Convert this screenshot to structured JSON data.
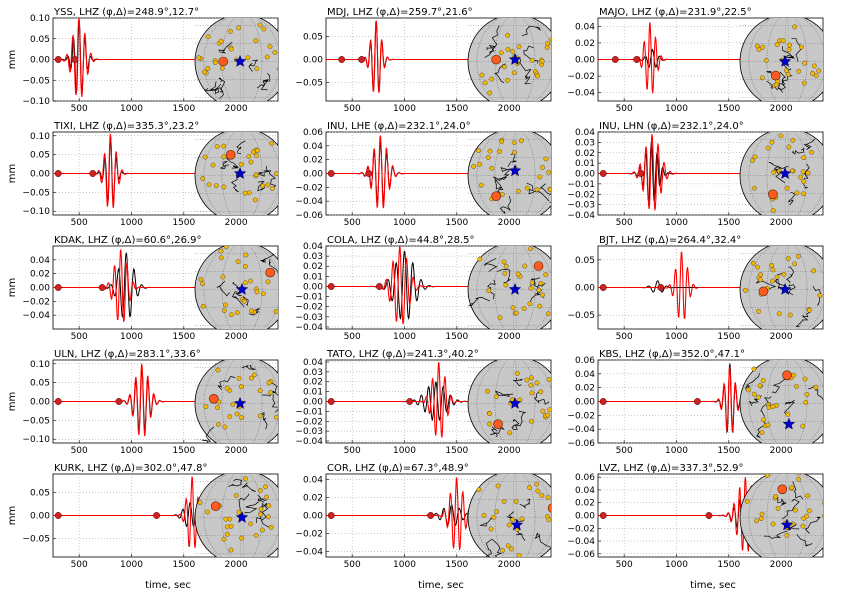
{
  "figure": {
    "ylabel": "mm",
    "xlabel": "time, sec",
    "colors": {
      "observed": "#000000",
      "synthetic": "#ff0000",
      "marker": "#cc2222",
      "station": "#ff5a1f",
      "event": "#0000cc",
      "globe": "#c8c8c8",
      "stations_dots": "#f5b800"
    }
  },
  "chart_data": [
    {
      "type": "line",
      "title": "YSS, LHZ (φ,Δ)=248.9°,12.7°",
      "xlim": [
        250,
        2400
      ],
      "ylim": [
        -0.1,
        0.1
      ],
      "yticks": [
        "0.10",
        "0.05",
        "0.00",
        "−0.05",
        "−0.10"
      ],
      "xticks": [
        "500",
        "1000",
        "1500",
        "2000"
      ],
      "picks": [
        300,
        460
      ],
      "series": [
        {
          "name": "observed",
          "t0": 500,
          "amp": 0.095,
          "period": 55,
          "nc": 1.6,
          "phase": 0
        },
        {
          "name": "synthetic",
          "t0": 500,
          "amp": 0.1,
          "period": 58,
          "nc": 1.8,
          "phase": 0.3
        }
      ],
      "map": {
        "sta": [
          0.3,
          0.5
        ],
        "evt": [
          0.48,
          0.5
        ]
      }
    },
    {
      "type": "line",
      "title": "MDJ, LHZ (φ,Δ)=259.7°,21.6°",
      "xlim": [
        250,
        2400
      ],
      "ylim": [
        -0.09,
        0.09
      ],
      "yticks": [
        "0.05",
        "0.00",
        "−0.05"
      ],
      "xticks": [
        "500",
        "1000",
        "1500",
        "2000"
      ],
      "picks": [
        400,
        590
      ],
      "series": [
        {
          "name": "observed",
          "t0": 730,
          "amp": 0.083,
          "period": 55,
          "nc": 1.5,
          "phase": 0
        },
        {
          "name": "synthetic",
          "t0": 730,
          "amp": 0.085,
          "period": 55,
          "nc": 1.5,
          "phase": 0.15
        }
      ],
      "map": {
        "sta": [
          0.3,
          0.48
        ],
        "evt": [
          0.5,
          0.48
        ]
      }
    },
    {
      "type": "line",
      "title": "MAJO, LHZ (φ,Δ)=231.9°,22.5°",
      "xlim": [
        250,
        2400
      ],
      "ylim": [
        -0.05,
        0.05
      ],
      "yticks": [
        "0.04",
        "0.02",
        "0.00",
        "−0.02",
        "−0.04"
      ],
      "xticks": [
        "500",
        "1000",
        "1500",
        "2000"
      ],
      "picks": [
        415,
        620
      ],
      "series": [
        {
          "name": "observed",
          "t0": 770,
          "amp": 0.012,
          "period": 70,
          "nc": 1.2,
          "phase": 0
        },
        {
          "name": "synthetic",
          "t0": 750,
          "amp": 0.045,
          "period": 55,
          "nc": 1.6,
          "phase": 0.5
        }
      ],
      "map": {
        "sta": [
          0.38,
          0.65
        ],
        "evt": [
          0.48,
          0.5
        ]
      }
    },
    {
      "type": "line",
      "title": "TIXI, LHZ (φ,Δ)=335.3°,23.2°",
      "xlim": [
        250,
        2400
      ],
      "ylim": [
        -0.11,
        0.11
      ],
      "yticks": [
        "0.10",
        "0.05",
        "0.00",
        "−0.05",
        "−0.10"
      ],
      "xticks": [
        "500",
        "1000",
        "1500",
        "2000"
      ],
      "picks": [
        300,
        630
      ],
      "series": [
        {
          "name": "observed",
          "t0": 800,
          "amp": 0.095,
          "period": 55,
          "nc": 1.4,
          "phase": 0
        },
        {
          "name": "synthetic",
          "t0": 800,
          "amp": 0.105,
          "period": 57,
          "nc": 1.6,
          "phase": 0.2
        }
      ],
      "map": {
        "sta": [
          0.38,
          0.28
        ],
        "evt": [
          0.48,
          0.48
        ]
      }
    },
    {
      "type": "line",
      "title": "INU, LHE (φ,Δ)=232.1°,24.0°",
      "xlim": [
        250,
        2400
      ],
      "ylim": [
        -0.06,
        0.06
      ],
      "yticks": [
        "0.06",
        "0.04",
        "0.02",
        "0.00",
        "−0.02",
        "−0.04",
        "−0.06"
      ],
      "xticks": [
        "500",
        "1000",
        "1500",
        "2000"
      ],
      "picks": [
        300,
        660
      ],
      "series": [
        {
          "name": "observed",
          "t0": 770,
          "amp": 0.045,
          "period": 60,
          "nc": 2.0,
          "phase": 0
        },
        {
          "name": "synthetic",
          "t0": 770,
          "amp": 0.055,
          "period": 60,
          "nc": 2.0,
          "phase": 0.1
        }
      ],
      "map": {
        "sta": [
          0.3,
          0.72
        ],
        "evt": [
          0.5,
          0.45
        ]
      }
    },
    {
      "type": "line",
      "title": "INU, LHN (φ,Δ)=232.1°,24.0°",
      "xlim": [
        250,
        2400
      ],
      "ylim": [
        -0.04,
        0.04
      ],
      "yticks": [
        "0.04",
        "0.03",
        "0.02",
        "0.01",
        "0.00",
        "−0.01",
        "−0.02",
        "−0.03",
        "−0.04"
      ],
      "xticks": [
        "500",
        "1000",
        "1500",
        "2000"
      ],
      "picks": [
        300,
        660
      ],
      "series": [
        {
          "name": "observed",
          "t0": 760,
          "amp": 0.03,
          "period": 55,
          "nc": 2.0,
          "phase": 0
        },
        {
          "name": "synthetic",
          "t0": 770,
          "amp": 0.038,
          "period": 58,
          "nc": 2.2,
          "phase": 0.4
        }
      ],
      "map": {
        "sta": [
          0.35,
          0.7
        ],
        "evt": [
          0.48,
          0.48
        ]
      }
    },
    {
      "type": "line",
      "title": "KDAK, LHZ (φ,Δ)=60.6°,26.9°",
      "xlim": [
        250,
        2400
      ],
      "ylim": [
        -0.06,
        0.06
      ],
      "yticks": [
        "0.04",
        "0.02",
        "0.00",
        "−0.02",
        "−0.04"
      ],
      "xticks": [
        "500",
        "1000",
        "1500",
        "2000"
      ],
      "picks": [
        300,
        720
      ],
      "series": [
        {
          "name": "observed",
          "t0": 950,
          "amp": 0.05,
          "period": 75,
          "nc": 1.6,
          "phase": 0
        },
        {
          "name": "synthetic",
          "t0": 900,
          "amp": 0.055,
          "period": 60,
          "nc": 1.8,
          "phase": 0.3
        }
      ],
      "map": {
        "sta": [
          0.8,
          0.32
        ],
        "evt": [
          0.5,
          0.5
        ]
      }
    },
    {
      "type": "line",
      "title": "COLA, LHZ (φ,Δ)=44.8°,28.5°",
      "xlim": [
        250,
        2400
      ],
      "ylim": [
        -0.042,
        0.04
      ],
      "yticks": [
        "0.04",
        "0.03",
        "0.02",
        "0.01",
        "0.00",
        "−0.01",
        "−0.02",
        "−0.03",
        "−0.04"
      ],
      "xticks": [
        "500",
        "1000",
        "1500",
        "2000"
      ],
      "picks": [
        300,
        760
      ],
      "series": [
        {
          "name": "observed",
          "t0": 1000,
          "amp": 0.035,
          "period": 80,
          "nc": 2.0,
          "phase": 0
        },
        {
          "name": "synthetic",
          "t0": 960,
          "amp": 0.04,
          "period": 65,
          "nc": 2.0,
          "phase": 0.5
        }
      ],
      "map": {
        "sta": [
          0.75,
          0.25
        ],
        "evt": [
          0.5,
          0.5
        ]
      }
    },
    {
      "type": "line",
      "title": "BJT, LHZ (φ,Δ)=264.4°,32.4°",
      "xlim": [
        250,
        2400
      ],
      "ylim": [
        -0.075,
        0.075
      ],
      "yticks": [
        "0.05",
        "0.00",
        "−0.05"
      ],
      "xticks": [
        "500",
        "1000",
        "1500",
        "2000"
      ],
      "picks": [
        300,
        850
      ],
      "series": [
        {
          "name": "observed",
          "t0": 820,
          "amp": 0.012,
          "period": 90,
          "nc": 1.0,
          "phase": 0
        },
        {
          "name": "synthetic",
          "t0": 1050,
          "amp": 0.065,
          "period": 58,
          "nc": 1.6,
          "phase": 0.2
        }
      ],
      "map": {
        "sta": [
          0.25,
          0.52
        ],
        "evt": [
          0.48,
          0.5
        ]
      }
    },
    {
      "type": "line",
      "title": "ULN, LHZ (φ,Δ)=283.1°,33.6°",
      "xlim": [
        250,
        2400
      ],
      "ylim": [
        -0.11,
        0.11
      ],
      "yticks": [
        "0.10",
        "0.05",
        "0.00",
        "−0.05",
        "−0.10"
      ],
      "xticks": [
        "500",
        "1000",
        "1500",
        "2000"
      ],
      "picks": [
        300,
        880
      ],
      "series": [
        {
          "name": "observed",
          "t0": 1100,
          "amp": 0.085,
          "period": 58,
          "nc": 2.0,
          "phase": 0
        },
        {
          "name": "synthetic",
          "t0": 1100,
          "amp": 0.1,
          "period": 58,
          "nc": 2.0,
          "phase": 0.2
        }
      ],
      "map": {
        "sta": [
          0.2,
          0.45
        ],
        "evt": [
          0.48,
          0.5
        ]
      }
    },
    {
      "type": "line",
      "title": "TATO, LHZ (φ,Δ)=241.3°,40.2°",
      "xlim": [
        250,
        2400
      ],
      "ylim": [
        -0.042,
        0.042
      ],
      "yticks": [
        "0.04",
        "0.03",
        "0.02",
        "0.01",
        "0.00",
        "−0.01",
        "−0.02",
        "−0.03",
        "−0.04"
      ],
      "xticks": [
        "500",
        "1000",
        "1500",
        "2000"
      ],
      "picks": [
        300,
        1050
      ],
      "series": [
        {
          "name": "observed",
          "t0": 1300,
          "amp": 0.02,
          "period": 70,
          "nc": 2.4,
          "phase": 0
        },
        {
          "name": "synthetic",
          "t0": 1330,
          "amp": 0.04,
          "period": 60,
          "nc": 1.8,
          "phase": 0.3
        }
      ],
      "map": {
        "sta": [
          0.32,
          0.72
        ],
        "evt": [
          0.5,
          0.5
        ]
      }
    },
    {
      "type": "line",
      "title": "KBS, LHZ (φ,Δ)=352.0°,47.1°",
      "xlim": [
        250,
        2400
      ],
      "ylim": [
        -0.06,
        0.06
      ],
      "yticks": [
        "0.06",
        "0.04",
        "0.02",
        "0.00",
        "−0.02",
        "−0.04",
        "−0.06"
      ],
      "xticks": [
        "500",
        "1000",
        "1500",
        "2000"
      ],
      "picks": [
        300,
        1200
      ],
      "series": [
        {
          "name": "observed",
          "t0": 1510,
          "amp": 0.055,
          "period": 55,
          "nc": 1.4,
          "phase": 0
        },
        {
          "name": "synthetic",
          "t0": 1510,
          "amp": 0.05,
          "period": 55,
          "nc": 1.6,
          "phase": 0.2
        }
      ],
      "map": {
        "sta": [
          0.5,
          0.2
        ],
        "evt": [
          0.52,
          0.72
        ]
      }
    },
    {
      "type": "line",
      "title": "KURK, LHZ (φ,Δ)=302.0°,47.8°",
      "xlim": [
        250,
        2400
      ],
      "ylim": [
        -0.09,
        0.09
      ],
      "yticks": [
        "0.05",
        "0.00",
        "−0.05"
      ],
      "xticks": [
        "500",
        "1000",
        "1500",
        "2000"
      ],
      "picks": [
        300,
        1240
      ],
      "series": [
        {
          "name": "observed",
          "t0": 1560,
          "amp": 0.028,
          "period": 70,
          "nc": 1.5,
          "phase": 0
        },
        {
          "name": "synthetic",
          "t0": 1580,
          "amp": 0.085,
          "period": 58,
          "nc": 1.4,
          "phase": 0.1
        }
      ],
      "map": {
        "sta": [
          0.22,
          0.38
        ],
        "evt": [
          0.5,
          0.5
        ]
      }
    },
    {
      "type": "line",
      "title": "COR, LHZ (φ,Δ)=67.3°,48.9°",
      "xlim": [
        250,
        2400
      ],
      "ylim": [
        -0.046,
        0.046
      ],
      "yticks": [
        "0.04",
        "0.02",
        "0.00",
        "−0.02",
        "−0.04"
      ],
      "xticks": [
        "500",
        "1000",
        "1500",
        "2000"
      ],
      "picks": [
        300,
        1250
      ],
      "series": [
        {
          "name": "observed",
          "t0": 1450,
          "amp": 0.012,
          "period": 75,
          "nc": 2.0,
          "phase": 0
        },
        {
          "name": "synthetic",
          "t0": 1500,
          "amp": 0.042,
          "period": 60,
          "nc": 1.8,
          "phase": 0.2
        }
      ],
      "map": {
        "sta": [
          0.9,
          0.4
        ],
        "evt": [
          0.52,
          0.58
        ]
      }
    },
    {
      "type": "line",
      "title": "LVZ, LHZ (φ,Δ)=337.3°,52.9°",
      "xlim": [
        250,
        2400
      ],
      "ylim": [
        -0.065,
        0.065
      ],
      "yticks": [
        "0.06",
        "0.04",
        "0.02",
        "0.00",
        "−0.02",
        "−0.04",
        "−0.06"
      ],
      "xticks": [
        "500",
        "1000",
        "1500",
        "2000"
      ],
      "picks": [
        300,
        1310
      ],
      "series": [
        {
          "name": "observed",
          "t0": 1660,
          "amp": 0.03,
          "period": 55,
          "nc": 2.6,
          "phase": 0
        },
        {
          "name": "synthetic",
          "t0": 1660,
          "amp": 0.06,
          "period": 55,
          "nc": 2.4,
          "phase": 0.2
        }
      ],
      "map": {
        "sta": [
          0.45,
          0.2
        ],
        "evt": [
          0.5,
          0.58
        ]
      }
    }
  ]
}
